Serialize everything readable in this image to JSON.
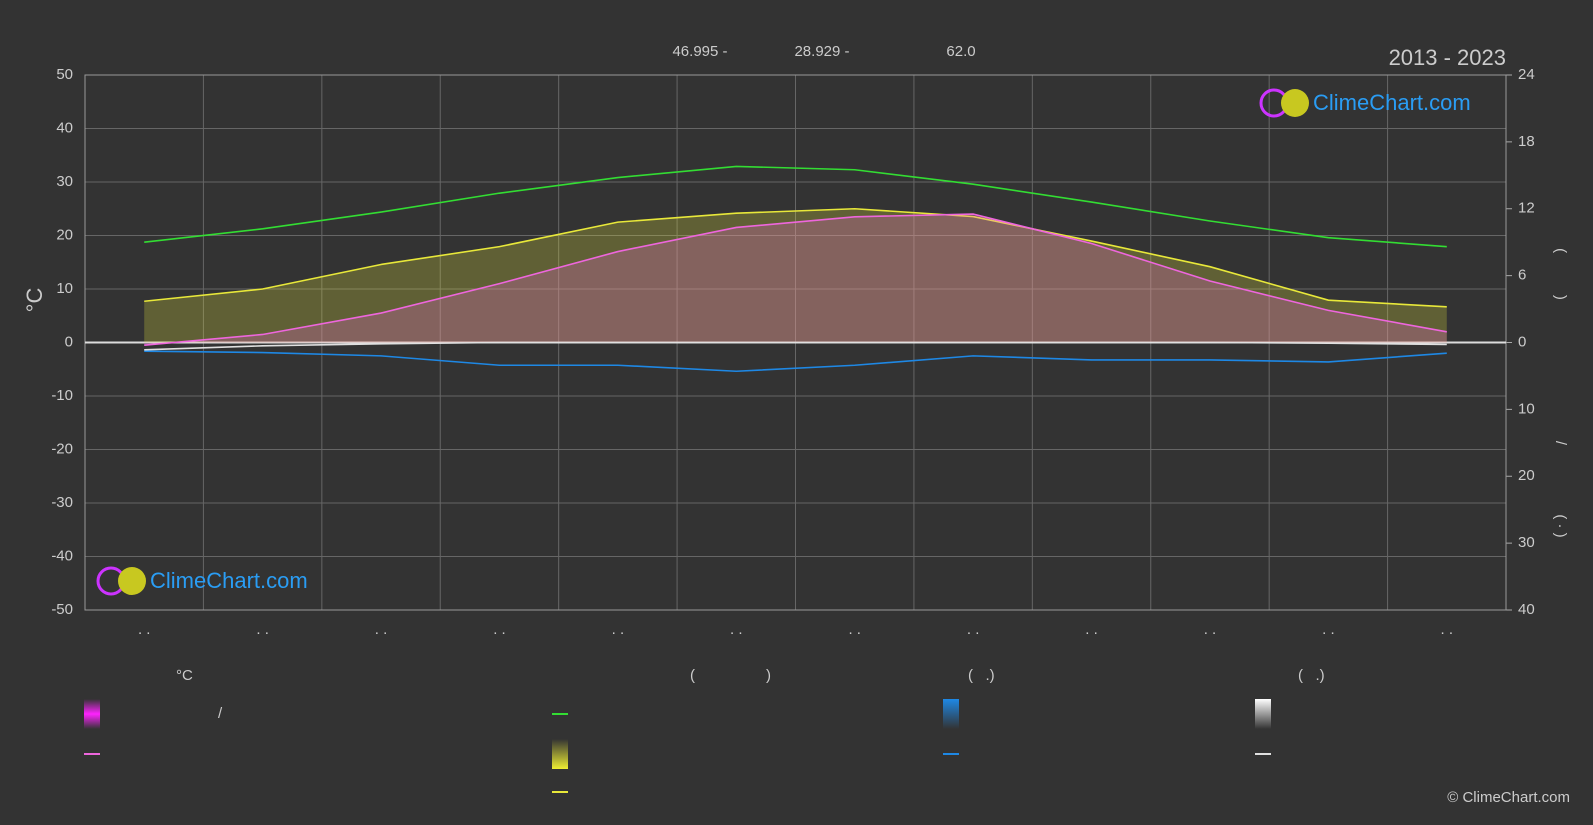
{
  "chart_data": {
    "type": "line",
    "title": "2013 - 2023",
    "header": [
      "46.995 -",
      "28.929 -",
      "62.0"
    ],
    "y_label": "°C",
    "y2_label": "(          )",
    "y3_label_parts": [
      "/",
      "( · )"
    ],
    "categories": [
      ". .",
      ". .",
      ". .",
      ". .",
      ". .",
      ". .",
      ". .",
      ". .",
      ". .",
      ". .",
      ". .",
      ". ."
    ],
    "ylim": [
      -50,
      50
    ],
    "yticks": [
      -50,
      -40,
      -30,
      -20,
      -10,
      0,
      10,
      20,
      30,
      40,
      50
    ],
    "y2lim": [
      0,
      24
    ],
    "y2ticks": [
      0,
      6,
      12,
      18,
      24
    ],
    "y3lim": [
      0,
      40
    ],
    "y3ticks": [
      10,
      20,
      30,
      40
    ],
    "grid": true,
    "series": [
      {
        "color": "#33dd33",
        "axis": "y2",
        "values": [
          9.0,
          10.2,
          11.7,
          13.4,
          14.8,
          15.8,
          15.5,
          14.2,
          12.6,
          10.9,
          9.4,
          8.6
        ]
      },
      {
        "color": "#e8e83a",
        "axis": "y2",
        "values": [
          3.7,
          4.8,
          7.0,
          8.6,
          10.8,
          11.6,
          12.0,
          11.3,
          9.1,
          6.8,
          3.8,
          3.2
        ]
      },
      {
        "color": "#ee66dd",
        "axis": "y",
        "values": [
          -0.5,
          1.5,
          5.5,
          11,
          17,
          21.5,
          23.5,
          24,
          18.5,
          11.5,
          6,
          2
        ]
      },
      {
        "color": "#1e88e5",
        "axis": "y3",
        "values": [
          1.3,
          1.5,
          2.0,
          3.4,
          3.4,
          4.3,
          3.4,
          2.0,
          2.6,
          2.6,
          2.9,
          1.6
        ]
      },
      {
        "color": "#e0e0e0",
        "axis": "y3",
        "values": [
          1.1,
          0.5,
          0.2,
          0,
          0,
          0,
          0,
          0,
          0,
          0,
          0.1,
          0.3
        ]
      }
    ]
  },
  "legend": {
    "headings": [
      "°C",
      "(",
      ")",
      "(   .)",
      "(   .)"
    ],
    "slash": "/"
  },
  "logo": "ClimeChart.com",
  "copyright": "© ClimeChart.com"
}
